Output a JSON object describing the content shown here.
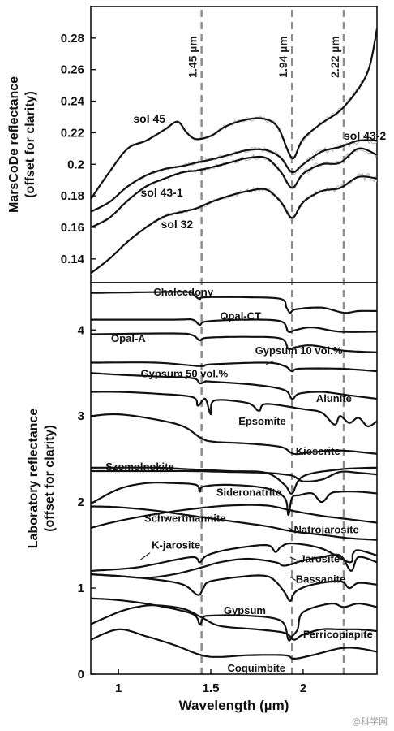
{
  "chart_data": [
    {
      "type": "line",
      "panel": "top",
      "ylabel": [
        "MarsCoDe reflectance",
        "(offset for clarity)"
      ],
      "xlim": [
        0.85,
        2.4
      ],
      "ylim": [
        0.125,
        0.3
      ],
      "yticks": [
        "0.28",
        "0.26",
        "0.24",
        "0.22",
        "0.2",
        "0.18",
        "0.16",
        "0.14"
      ],
      "ytick_values": [
        0.28,
        0.26,
        0.24,
        0.22,
        0.2,
        0.18,
        0.16,
        0.14
      ],
      "vlines": [
        {
          "x": 1.45,
          "label": "1.45 µm"
        },
        {
          "x": 1.94,
          "label": "1.94 µm"
        },
        {
          "x": 2.22,
          "label": "2.22 µm"
        }
      ],
      "series": [
        {
          "name": "sol 45",
          "label_at": [
            1.08,
            0.2265
          ],
          "x": [
            0.85,
            0.95,
            1.05,
            1.15,
            1.25,
            1.32,
            1.37,
            1.42,
            1.5,
            1.58,
            1.68,
            1.78,
            1.86,
            1.92,
            1.95,
            2.0,
            2.1,
            2.2,
            2.3,
            2.36,
            2.4
          ],
          "y": [
            0.178,
            0.195,
            0.21,
            0.215,
            0.222,
            0.227,
            0.22,
            0.216,
            0.218,
            0.224,
            0.228,
            0.229,
            0.224,
            0.208,
            0.204,
            0.216,
            0.226,
            0.234,
            0.248,
            0.262,
            0.286
          ]
        },
        {
          "name": "sol 43-2",
          "label_at": [
            2.22,
            0.2155
          ],
          "x": [
            0.85,
            0.95,
            1.05,
            1.15,
            1.25,
            1.35,
            1.42,
            1.5,
            1.6,
            1.7,
            1.8,
            1.88,
            1.94,
            2.0,
            2.1,
            2.2,
            2.3,
            2.4
          ],
          "y": [
            0.17,
            0.176,
            0.186,
            0.193,
            0.197,
            0.199,
            0.201,
            0.203,
            0.206,
            0.209,
            0.209,
            0.204,
            0.195,
            0.2,
            0.208,
            0.211,
            0.215,
            0.215
          ]
        },
        {
          "name": "sol 43-1",
          "label_at": [
            1.12,
            0.1795
          ],
          "x": [
            0.85,
            0.95,
            1.05,
            1.15,
            1.25,
            1.35,
            1.42,
            1.5,
            1.6,
            1.7,
            1.8,
            1.88,
            1.94,
            2.0,
            2.1,
            2.2,
            2.3,
            2.4
          ],
          "y": [
            0.16,
            0.166,
            0.177,
            0.186,
            0.191,
            0.195,
            0.196,
            0.198,
            0.201,
            0.204,
            0.204,
            0.195,
            0.185,
            0.194,
            0.2,
            0.201,
            0.21,
            0.206
          ]
        },
        {
          "name": "sol 32",
          "label_at": [
            1.23,
            0.1595
          ],
          "x": [
            0.85,
            0.95,
            1.05,
            1.15,
            1.25,
            1.35,
            1.42,
            1.5,
            1.6,
            1.7,
            1.8,
            1.88,
            1.94,
            2.0,
            2.1,
            2.2,
            2.3,
            2.4
          ],
          "y": [
            0.131,
            0.14,
            0.151,
            0.16,
            0.167,
            0.17,
            0.172,
            0.176,
            0.18,
            0.183,
            0.184,
            0.176,
            0.166,
            0.176,
            0.183,
            0.185,
            0.192,
            0.191
          ]
        }
      ]
    },
    {
      "type": "line",
      "panel": "bottom",
      "ylabel": [
        "Laboratory reflectance",
        "(offset for clarity)"
      ],
      "xlabel": "Wavelength (µm)",
      "xlim": [
        0.85,
        2.4
      ],
      "ylim": [
        0.0,
        4.55
      ],
      "yticks": [
        "4",
        "3",
        "2",
        "1",
        "0"
      ],
      "ytick_values": [
        4,
        3,
        2,
        1,
        0
      ],
      "xticks": [
        "1",
        "1.5",
        "2"
      ],
      "xtick_values": [
        1.0,
        1.5,
        2.0
      ],
      "series": [
        {
          "name": "Chalcedony",
          "label_at": [
            1.19,
            4.4
          ],
          "x": [
            0.85,
            1.2,
            1.38,
            1.41,
            1.44,
            1.47,
            1.7,
            1.88,
            1.91,
            1.93,
            1.96,
            2.1,
            2.22,
            2.3,
            2.4
          ],
          "y": [
            4.43,
            4.44,
            4.44,
            4.4,
            4.36,
            4.38,
            4.38,
            4.36,
            4.26,
            4.2,
            4.24,
            4.26,
            4.2,
            4.22,
            4.22
          ]
        },
        {
          "name": "Opal-CT",
          "label_at": [
            1.55,
            4.12
          ],
          "x": [
            0.85,
            1.3,
            1.4,
            1.44,
            1.48,
            1.7,
            1.88,
            1.92,
            1.96,
            2.05,
            2.2,
            2.4
          ],
          "y": [
            4.12,
            4.12,
            4.12,
            4.06,
            4.1,
            4.12,
            4.1,
            3.98,
            4.0,
            4.03,
            3.98,
            3.98
          ]
        },
        {
          "name": "Opal-A",
          "label_at": [
            0.96,
            3.86
          ],
          "x": [
            0.85,
            1.3,
            1.4,
            1.44,
            1.48,
            1.7,
            1.88,
            1.92,
            1.96,
            2.05,
            2.22,
            2.4
          ],
          "y": [
            3.95,
            3.96,
            3.94,
            3.88,
            3.91,
            3.92,
            3.9,
            3.78,
            3.8,
            3.82,
            3.76,
            3.74
          ]
        },
        {
          "name": "Gypsum 10 vol.%",
          "label_at": [
            1.74,
            3.72
          ],
          "x": [
            0.85,
            1.2,
            1.44,
            1.5,
            1.8,
            1.9,
            1.94,
            1.98,
            2.2,
            2.4
          ],
          "y": [
            3.62,
            3.62,
            3.58,
            3.6,
            3.62,
            3.58,
            3.52,
            3.55,
            3.55,
            3.52
          ]
        },
        {
          "name": "Gypsum 50 vol.%",
          "label_at": [
            1.12,
            3.45
          ],
          "x": [
            0.85,
            1.0,
            1.2,
            1.4,
            1.44,
            1.47,
            1.5,
            1.75,
            1.9,
            1.94,
            1.98,
            2.1,
            2.25,
            2.4
          ],
          "y": [
            3.5,
            3.48,
            3.46,
            3.44,
            3.38,
            3.4,
            3.4,
            3.36,
            3.3,
            3.2,
            3.26,
            3.28,
            3.24,
            3.2
          ]
        },
        {
          "name": "Alunite",
          "label_at": [
            2.07,
            3.16
          ],
          "x": [
            0.85,
            1.0,
            1.2,
            1.4,
            1.43,
            1.47,
            1.5,
            1.52,
            1.7,
            1.76,
            1.8,
            2.0,
            2.1,
            2.17,
            2.2,
            2.25,
            2.3,
            2.35,
            2.4
          ],
          "y": [
            3.28,
            3.28,
            3.26,
            3.22,
            3.12,
            3.2,
            3.02,
            3.18,
            3.15,
            3.06,
            3.14,
            3.08,
            3.04,
            2.9,
            3.0,
            2.92,
            2.98,
            2.88,
            2.94
          ]
        },
        {
          "name": "Epsomite",
          "label_at": [
            1.65,
            2.9
          ],
          "x": [
            0.85,
            1.0,
            1.2,
            1.35,
            1.45,
            1.52,
            1.7,
            1.88,
            1.95,
            2.05,
            2.2,
            2.4
          ],
          "y": [
            3.0,
            3.02,
            2.96,
            2.88,
            2.74,
            2.7,
            2.68,
            2.64,
            2.56,
            2.58,
            2.6,
            2.56
          ]
        },
        {
          "name": "Kieserite",
          "label_at": [
            1.96,
            2.55
          ],
          "x": [
            0.85,
            1.2,
            1.4,
            1.6,
            1.8,
            1.9,
            1.95,
            2.0,
            2.1,
            2.2,
            2.3,
            2.4
          ],
          "y": [
            2.36,
            2.36,
            2.36,
            2.35,
            2.34,
            2.32,
            2.3,
            2.24,
            2.26,
            2.35,
            2.34,
            2.32
          ]
        },
        {
          "name": "Szomolnokite",
          "label_at": [
            0.93,
            2.37
          ],
          "x": [
            0.85,
            1.0,
            1.2,
            1.4,
            1.6,
            1.8,
            1.9,
            1.94,
            2.0,
            2.2,
            2.4
          ],
          "y": [
            2.4,
            2.4,
            2.4,
            2.38,
            2.36,
            2.34,
            2.2,
            2.1,
            2.3,
            2.38,
            2.4
          ]
        },
        {
          "name": "Sideronatrite",
          "label_at": [
            1.53,
            2.07
          ],
          "x": [
            0.85,
            1.0,
            1.15,
            1.3,
            1.42,
            1.44,
            1.46,
            1.6,
            1.8,
            1.9,
            1.92,
            1.94,
            1.98,
            2.05,
            2.1,
            2.15,
            2.2,
            2.3,
            2.4
          ],
          "y": [
            1.98,
            2.15,
            2.22,
            2.22,
            2.2,
            2.12,
            2.18,
            2.2,
            2.16,
            2.05,
            1.85,
            2.05,
            2.08,
            2.1,
            2.0,
            2.1,
            2.12,
            2.12,
            2.1
          ]
        },
        {
          "name": "Schwertmannite",
          "label_at": [
            1.14,
            1.77
          ],
          "x": [
            0.85,
            1.0,
            1.2,
            1.4,
            1.6,
            1.8,
            1.94,
            2.1,
            2.25,
            2.4
          ],
          "y": [
            1.7,
            1.78,
            1.86,
            1.92,
            1.96,
            1.96,
            1.9,
            1.84,
            1.8,
            1.76
          ]
        },
        {
          "name": "Natrojarosite",
          "label_at": [
            1.95,
            1.64
          ],
          "x": [
            0.85,
            1.0,
            1.2,
            1.4,
            1.6,
            1.8,
            1.94,
            2.1,
            2.25,
            2.4
          ],
          "y": [
            1.95,
            1.94,
            1.9,
            1.84,
            1.78,
            1.72,
            1.66,
            1.62,
            1.58,
            1.56
          ]
        },
        {
          "name": "K-jarosite",
          "label_at": [
            1.18,
            1.46
          ],
          "x": [
            0.85,
            1.0,
            1.1,
            1.2,
            1.4,
            1.44,
            1.48,
            1.6,
            1.8,
            1.85,
            1.88,
            1.94,
            2.1,
            2.25,
            2.27,
            2.3,
            2.4
          ],
          "y": [
            1.2,
            1.22,
            1.24,
            1.28,
            1.36,
            1.3,
            1.38,
            1.45,
            1.5,
            1.42,
            1.48,
            1.52,
            1.46,
            1.3,
            1.4,
            1.44,
            1.38
          ]
        },
        {
          "name": "Jarosite",
          "label_at": [
            1.98,
            1.3
          ],
          "x": [
            0.85,
            1.0,
            1.15,
            1.3,
            1.45,
            1.55,
            1.7,
            1.85,
            1.9,
            2.0,
            2.1,
            2.2,
            2.26,
            2.3,
            2.4
          ],
          "y": [
            1.16,
            1.14,
            1.12,
            1.16,
            1.24,
            1.3,
            1.34,
            1.3,
            1.26,
            1.32,
            1.36,
            1.38,
            1.2,
            1.36,
            1.3
          ]
        },
        {
          "name": "Bassanite",
          "label_at": [
            1.96,
            1.06
          ],
          "x": [
            0.85,
            1.0,
            1.2,
            1.35,
            1.43,
            1.46,
            1.5,
            1.7,
            1.8,
            1.85,
            1.9,
            1.93,
            1.96,
            2.05,
            2.2,
            2.25,
            2.3,
            2.4
          ],
          "y": [
            1.16,
            1.14,
            1.1,
            1.04,
            0.92,
            1.0,
            1.08,
            1.14,
            1.14,
            1.08,
            0.95,
            0.85,
            0.96,
            1.04,
            1.08,
            1.0,
            1.06,
            1.04
          ]
        },
        {
          "name": "Gypsum",
          "label_at": [
            1.57,
            0.7
          ],
          "x": [
            0.85,
            1.0,
            1.2,
            1.4,
            1.44,
            1.46,
            1.5,
            1.7,
            1.88,
            1.92,
            1.94,
            1.97,
            2.0,
            2.15,
            2.22,
            2.3,
            2.4
          ],
          "y": [
            0.88,
            0.86,
            0.8,
            0.7,
            0.58,
            0.66,
            0.68,
            0.68,
            0.62,
            0.4,
            0.44,
            0.52,
            0.72,
            0.82,
            0.78,
            0.82,
            0.78
          ]
        },
        {
          "name": "Ferricopiapite",
          "label_at": [
            2.0,
            0.42
          ],
          "x": [
            0.85,
            1.0,
            1.1,
            1.2,
            1.35,
            1.45,
            1.55,
            1.75,
            1.9,
            1.95,
            2.0,
            2.1,
            2.2,
            2.3,
            2.4
          ],
          "y": [
            0.58,
            0.72,
            0.78,
            0.8,
            0.76,
            0.66,
            0.56,
            0.52,
            0.48,
            0.4,
            0.46,
            0.52,
            0.52,
            0.52,
            0.5
          ]
        },
        {
          "name": "Coquimbite",
          "label_at": [
            1.59,
            0.03
          ],
          "x": [
            0.85,
            1.0,
            1.15,
            1.3,
            1.45,
            1.55,
            1.7,
            1.9,
            1.95,
            2.05,
            2.2,
            2.3,
            2.4
          ],
          "y": [
            0.4,
            0.52,
            0.44,
            0.34,
            0.22,
            0.2,
            0.22,
            0.22,
            0.18,
            0.22,
            0.3,
            0.3,
            0.26
          ]
        }
      ]
    }
  ]
}
